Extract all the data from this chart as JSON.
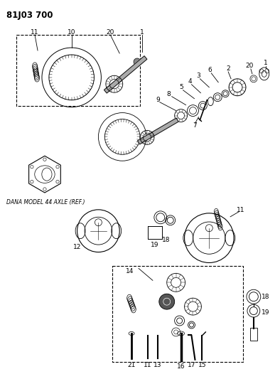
{
  "title": "81J03 700",
  "background_color": "#ffffff",
  "dana_label": "DANA MODEL 44 AXLE (REF.)",
  "fig_width": 3.94,
  "fig_height": 5.33,
  "dpi": 100
}
